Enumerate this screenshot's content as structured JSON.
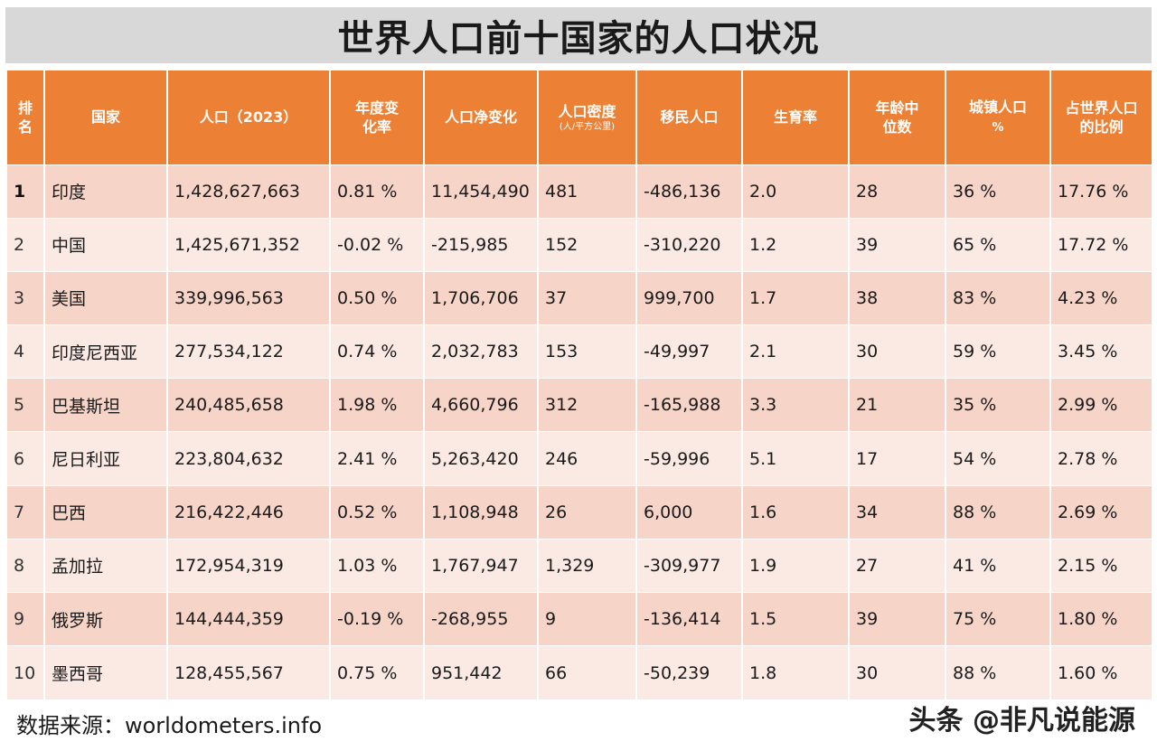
{
  "title": "世界人口前十国家的人口状况",
  "headers": {
    "rank": "排名",
    "country": "国家",
    "population": "人口（2023）",
    "yearly_change": "年度变化率",
    "net_change": "人口净变化",
    "density": "人口密度",
    "density_unit": "(人/平方公里)",
    "migrants": "移民人口",
    "fertility": "生育率",
    "median_age": "年龄中位数",
    "urban": "城镇人口",
    "urban_unit": "%",
    "world_share": "占世界人口的比例"
  },
  "rows": [
    {
      "rank": "1",
      "country": "印度",
      "population": "1,428,627,663",
      "yearly_change": "0.81 %",
      "net_change": "11,454,490",
      "density": "481",
      "migrants": "-486,136",
      "fertility": "2.0",
      "median_age": "28",
      "urban": "36 %",
      "world_share": "17.76 %"
    },
    {
      "rank": "2",
      "country": "中国",
      "population": "1,425,671,352",
      "yearly_change": "-0.02 %",
      "net_change": "-215,985",
      "density": "152",
      "migrants": "-310,220",
      "fertility": "1.2",
      "median_age": "39",
      "urban": "65 %",
      "world_share": "17.72 %"
    },
    {
      "rank": "3",
      "country": "美国",
      "population": "339,996,563",
      "yearly_change": "0.50 %",
      "net_change": "1,706,706",
      "density": "37",
      "migrants": "999,700",
      "fertility": "1.7",
      "median_age": "38",
      "urban": "83 %",
      "world_share": "4.23 %"
    },
    {
      "rank": "4",
      "country": "印度尼西亚",
      "population": "277,534,122",
      "yearly_change": "0.74 %",
      "net_change": "2,032,783",
      "density": "153",
      "migrants": "-49,997",
      "fertility": "2.1",
      "median_age": "30",
      "urban": "59 %",
      "world_share": "3.45 %"
    },
    {
      "rank": "5",
      "country": "巴基斯坦",
      "population": "240,485,658",
      "yearly_change": "1.98 %",
      "net_change": "4,660,796",
      "density": "312",
      "migrants": "-165,988",
      "fertility": "3.3",
      "median_age": "21",
      "urban": "35 %",
      "world_share": "2.99 %"
    },
    {
      "rank": "6",
      "country": "尼日利亚",
      "population": "223,804,632",
      "yearly_change": "2.41 %",
      "net_change": "5,263,420",
      "density": "246",
      "migrants": "-59,996",
      "fertility": "5.1",
      "median_age": "17",
      "urban": "54 %",
      "world_share": "2.78 %"
    },
    {
      "rank": "7",
      "country": "巴西",
      "population": "216,422,446",
      "yearly_change": "0.52 %",
      "net_change": "1,108,948",
      "density": "26",
      "migrants": "6,000",
      "fertility": "1.6",
      "median_age": "34",
      "urban": "88 %",
      "world_share": "2.69 %"
    },
    {
      "rank": "8",
      "country": "孟加拉",
      "population": "172,954,319",
      "yearly_change": "1.03 %",
      "net_change": "1,767,947",
      "density": "1,329",
      "migrants": "-309,977",
      "fertility": "1.9",
      "median_age": "27",
      "urban": "41 %",
      "world_share": "2.15 %"
    },
    {
      "rank": "9",
      "country": "俄罗斯",
      "population": "144,444,359",
      "yearly_change": "-0.19 %",
      "net_change": "-268,955",
      "density": "9",
      "migrants": "-136,414",
      "fertility": "1.5",
      "median_age": "39",
      "urban": "75 %",
      "world_share": "1.80 %"
    },
    {
      "rank": "10",
      "country": "墨西哥",
      "population": "128,455,567",
      "yearly_change": "0.75 %",
      "net_change": "951,442",
      "density": "66",
      "migrants": "-50,239",
      "fertility": "1.8",
      "median_age": "30",
      "urban": "88 %",
      "world_share": "1.60 %"
    }
  ],
  "source": "数据来源：worldometers.info",
  "watermark": "头条 @非凡说能源",
  "colors": {
    "header_bg": "#ec8034",
    "row_odd": "#f7d4c8",
    "row_even": "#fbeae4",
    "title_bg": "#d8d8d8"
  }
}
